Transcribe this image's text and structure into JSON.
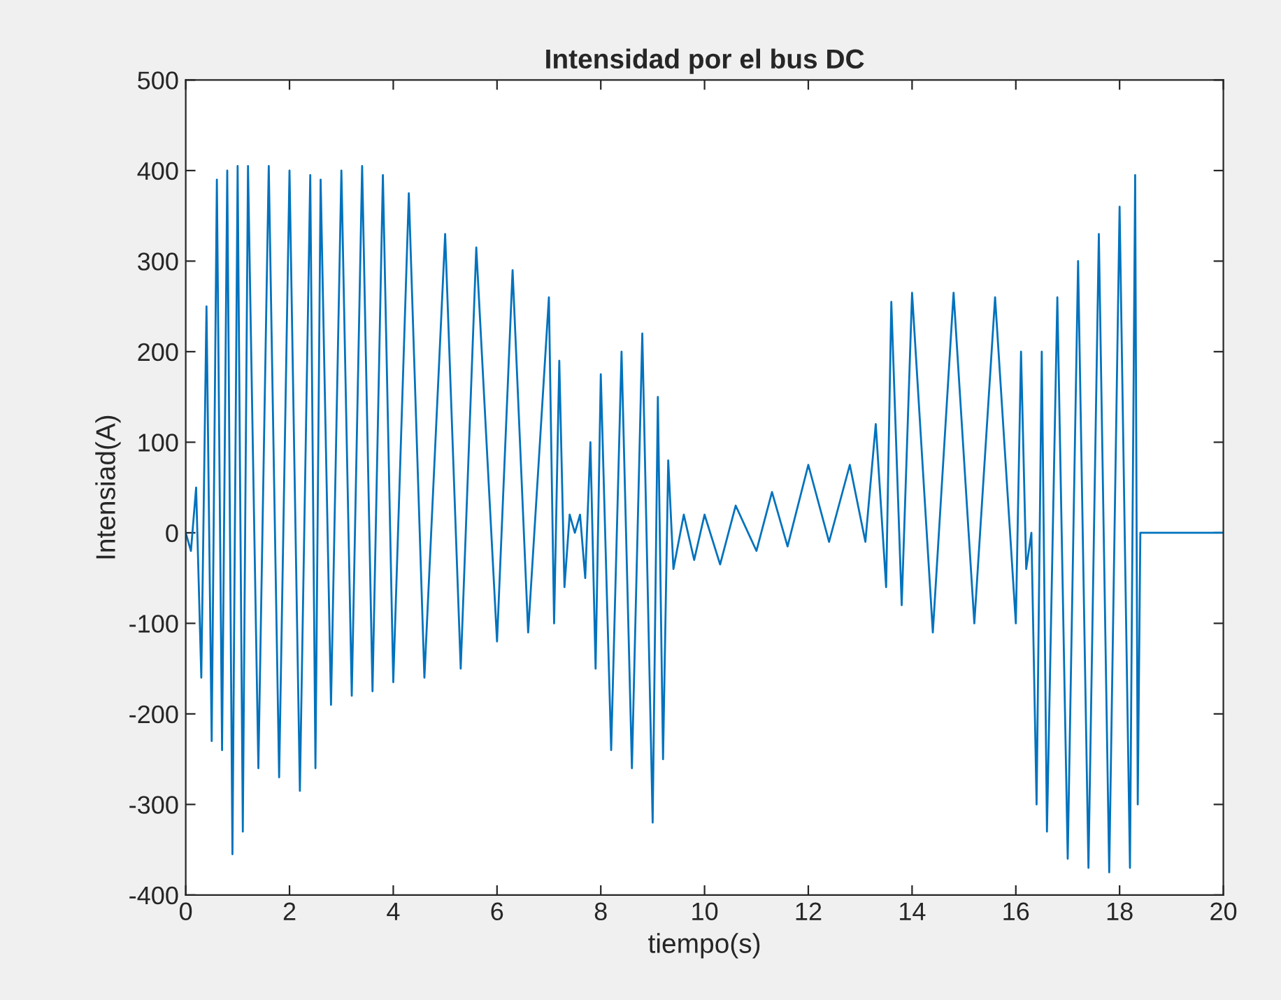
{
  "chart_data": {
    "type": "line",
    "title": "Intensidad por el bus DC",
    "xlabel": "tiempo(s)",
    "ylabel": "Intensiad(A)",
    "x": [
      0,
      0.1,
      0.2,
      0.3,
      0.4,
      0.5,
      0.6,
      0.7,
      0.8,
      0.9,
      1.0,
      1.1,
      1.2,
      1.4,
      1.6,
      1.8,
      2.0,
      2.2,
      2.4,
      2.5,
      2.6,
      2.8,
      3.0,
      3.2,
      3.4,
      3.6,
      3.8,
      4.0,
      4.3,
      4.6,
      5.0,
      5.3,
      5.6,
      6.0,
      6.3,
      6.6,
      7.0,
      7.1,
      7.2,
      7.3,
      7.4,
      7.5,
      7.6,
      7.7,
      7.8,
      7.9,
      8.0,
      8.2,
      8.4,
      8.6,
      8.8,
      9.0,
      9.1,
      9.2,
      9.3,
      9.4,
      9.6,
      9.8,
      10.0,
      10.3,
      10.6,
      11.0,
      11.3,
      11.6,
      12.0,
      12.4,
      12.8,
      13.1,
      13.3,
      13.5,
      13.6,
      13.8,
      14.0,
      14.4,
      14.8,
      15.2,
      15.6,
      16.0,
      16.1,
      16.2,
      16.3,
      16.4,
      16.5,
      16.6,
      16.8,
      17.0,
      17.2,
      17.4,
      17.6,
      17.8,
      18.0,
      18.2,
      18.3,
      18.35,
      18.4,
      20
    ],
    "series": [
      {
        "color": "#0072bd",
        "values": [
          0,
          -20,
          50,
          -160,
          250,
          -230,
          390,
          -240,
          400,
          -355,
          405,
          -330,
          405,
          -260,
          405,
          -270,
          400,
          -285,
          395,
          -260,
          390,
          -190,
          400,
          -180,
          405,
          -175,
          395,
          -165,
          375,
          -160,
          330,
          -150,
          315,
          -120,
          290,
          -110,
          260,
          -100,
          190,
          -60,
          20,
          0,
          20,
          -50,
          100,
          -150,
          175,
          -240,
          200,
          -260,
          220,
          -320,
          150,
          -250,
          80,
          -40,
          20,
          -30,
          20,
          -35,
          30,
          -20,
          45,
          -15,
          75,
          -10,
          75,
          -10,
          120,
          -60,
          255,
          -80,
          265,
          -110,
          265,
          -100,
          260,
          -100,
          200,
          -40,
          0,
          -300,
          200,
          -330,
          260,
          -360,
          300,
          -370,
          330,
          -375,
          360,
          -370,
          395,
          -300,
          0,
          0
        ]
      }
    ],
    "xlim": [
      0,
      20
    ],
    "ylim": [
      -400,
      500
    ],
    "xticks": [
      0,
      2,
      4,
      6,
      8,
      10,
      12,
      14,
      16,
      18,
      20
    ],
    "yticks": [
      -400,
      -300,
      -200,
      -100,
      0,
      100,
      200,
      300,
      400,
      500
    ],
    "grid": false,
    "legend": false,
    "line_style": "solid",
    "marker": "none"
  }
}
